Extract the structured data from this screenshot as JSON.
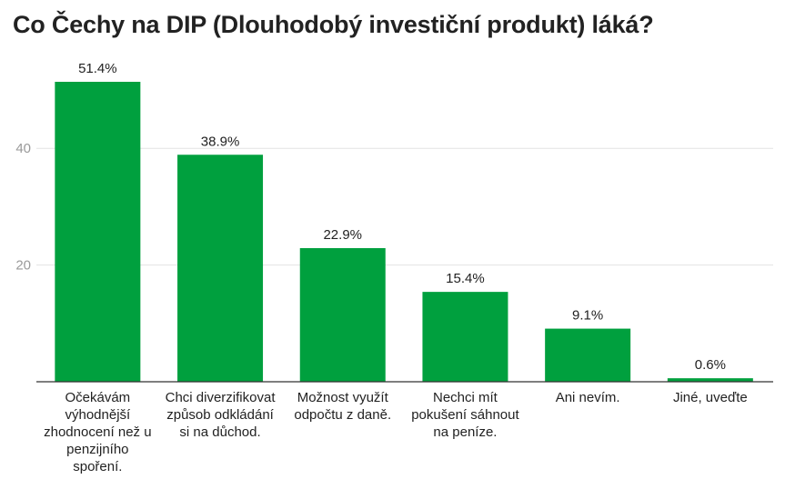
{
  "chart_data": {
    "type": "bar",
    "title": "Co Čechy na DIP (Dlouhodobý investiční produkt) láká?",
    "categories": [
      "Očekávám výhodnější zhodnocení než u penzijního spoření.",
      "Chci diverzifikovat způsob odkládání si na důchod.",
      "Možnost využít odpočtu z daně.",
      "Nechci mít pokušení sáhnout na peníze.",
      "Ani nevím.",
      "Jiné, uveďte"
    ],
    "values": [
      51.4,
      38.9,
      22.9,
      15.4,
      9.1,
      0.6
    ],
    "value_labels": [
      "51.4%",
      "38.9%",
      "22.9%",
      "15.4%",
      "9.1%",
      "0.6%"
    ],
    "y_ticks": [
      "20",
      "40"
    ],
    "ylim": [
      0,
      55
    ],
    "grid": true,
    "bar_color": "#00a03e"
  }
}
